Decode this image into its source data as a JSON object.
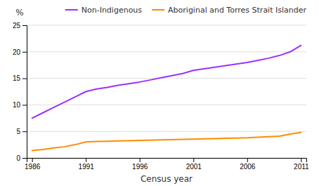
{
  "chart_data": {
    "type": "line",
    "x_label": "Census year",
    "y_label": "%",
    "x": [
      1986,
      1987,
      1988,
      1989,
      1990,
      1991,
      1992,
      1993,
      1994,
      1995,
      1996,
      1997,
      1998,
      1999,
      2000,
      2001,
      2002,
      2003,
      2004,
      2005,
      2006,
      2007,
      2008,
      2009,
      2010,
      2011
    ],
    "series": [
      {
        "name": "Non-Indigenous",
        "color": "#9B30FF",
        "values": [
          7.5,
          8.5,
          9.5,
          10.5,
          11.5,
          12.5,
          13.0,
          13.3,
          13.7,
          14.0,
          14.3,
          14.7,
          15.1,
          15.5,
          15.9,
          16.5,
          16.8,
          17.1,
          17.4,
          17.7,
          18.0,
          18.4,
          18.8,
          19.3,
          20.0,
          21.2
        ]
      },
      {
        "name": "Aboriginal and Torres Strait Islander",
        "color": "#FF8C00",
        "values": [
          1.4,
          1.6,
          1.9,
          2.1,
          2.5,
          3.0,
          3.1,
          3.15,
          3.2,
          3.25,
          3.3,
          3.35,
          3.4,
          3.45,
          3.5,
          3.55,
          3.6,
          3.65,
          3.7,
          3.75,
          3.8,
          3.9,
          4.0,
          4.1,
          4.5,
          4.8
        ]
      }
    ],
    "xlim": [
      1985.5,
      2011.5
    ],
    "xticks": [
      1986,
      1991,
      1996,
      2001,
      2006,
      2011
    ],
    "ylim": [
      0,
      25
    ],
    "yticks": [
      0,
      5,
      10,
      15,
      20,
      25
    ],
    "grid": "y",
    "legend": "upper right"
  }
}
